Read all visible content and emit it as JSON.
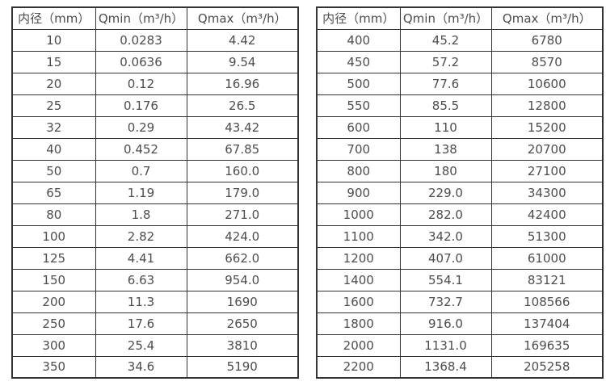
{
  "columns": [
    "内径（mm）",
    "Qmin（m³/h）",
    "Qmax（m³/h）"
  ],
  "colors": {
    "border": "#333333",
    "text": "#4d4d4d",
    "background": "#ffffff"
  },
  "left_table": {
    "rows": [
      [
        "10",
        "0.0283",
        "4.42"
      ],
      [
        "15",
        "0.0636",
        "9.54"
      ],
      [
        "20",
        "0.12",
        "16.96"
      ],
      [
        "25",
        "0.176",
        "26.5"
      ],
      [
        "32",
        "0.29",
        "43.42"
      ],
      [
        "40",
        "0.452",
        "67.85"
      ],
      [
        "50",
        "0.7",
        "160.0"
      ],
      [
        "65",
        "1.19",
        "179.0"
      ],
      [
        "80",
        "1.8",
        "271.0"
      ],
      [
        "100",
        "2.82",
        "424.0"
      ],
      [
        "125",
        "4.41",
        "662.0"
      ],
      [
        "150",
        "6.63",
        "954.0"
      ],
      [
        "200",
        "11.3",
        "1690"
      ],
      [
        "250",
        "17.6",
        "2650"
      ],
      [
        "300",
        "25.4",
        "3810"
      ],
      [
        "350",
        "34.6",
        "5190"
      ]
    ]
  },
  "right_table": {
    "rows": [
      [
        "400",
        "45.2",
        "6780"
      ],
      [
        "450",
        "57.2",
        "8570"
      ],
      [
        "500",
        "77.6",
        "10600"
      ],
      [
        "550",
        "85.5",
        "12800"
      ],
      [
        "600",
        "110",
        "15200"
      ],
      [
        "700",
        "138",
        "20700"
      ],
      [
        "800",
        "180",
        "27100"
      ],
      [
        "900",
        "229.0",
        "34300"
      ],
      [
        "1000",
        "282.0",
        "42400"
      ],
      [
        "1100",
        "342.0",
        "51300"
      ],
      [
        "1200",
        "407.0",
        "61000"
      ],
      [
        "1400",
        "554.1",
        "83121"
      ],
      [
        "1600",
        "732.7",
        "108566"
      ],
      [
        "1800",
        "916.0",
        "137404"
      ],
      [
        "2000",
        "1131.0",
        "169635"
      ],
      [
        "2200",
        "1368.4",
        "205258"
      ]
    ]
  }
}
